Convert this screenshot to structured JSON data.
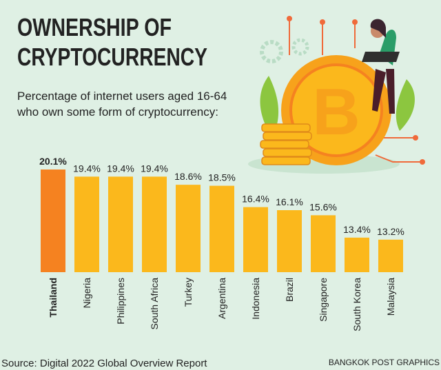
{
  "chart_data": {
    "type": "bar",
    "title": [
      "OWNERSHIP OF",
      "CRYPTOCURRENCY"
    ],
    "subtitle": [
      "Percentage of internet users aged 16-64",
      "who own some form of cryptocurrency:"
    ],
    "categories": [
      "Thailand",
      "Nigeria",
      "Philippines",
      "South Africa",
      "Turkey",
      "Argentina",
      "Indonesia",
      "Brazil",
      "Singapore",
      "South Korea",
      "Malaysia"
    ],
    "values": [
      20.1,
      19.4,
      19.4,
      19.4,
      18.6,
      18.5,
      16.4,
      16.1,
      15.6,
      13.4,
      13.2
    ],
    "value_labels": [
      "20.1%",
      "19.4%",
      "19.4%",
      "19.4%",
      "18.6%",
      "18.5%",
      "16.4%",
      "16.1%",
      "15.6%",
      "13.4%",
      "13.2%"
    ],
    "colors": [
      "#f58220",
      "#fbb81c",
      "#fbb81c",
      "#fbb81c",
      "#fbb81c",
      "#fbb81c",
      "#fbb81c",
      "#fbb81c",
      "#fbb81c",
      "#fbb81c",
      "#fbb81c"
    ],
    "ylim": [
      10,
      22
    ],
    "source": "Source: Digital 2022 Global Overview Report",
    "credit": "BANGKOK POST GRAPHICS"
  }
}
